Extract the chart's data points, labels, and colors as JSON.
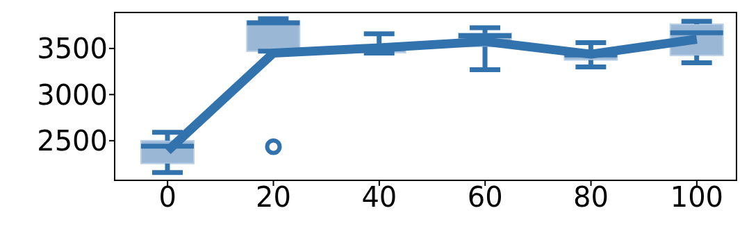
{
  "chart_data": {
    "type": "box",
    "x": [
      0,
      20,
      40,
      60,
      80,
      100
    ],
    "color": "#9ab8d6",
    "boxes": [
      {
        "low": 2155,
        "q1": 2253,
        "median": 2440,
        "q3": 2500,
        "high": 2590
      },
      {
        "low": 3470,
        "q1": 3470,
        "median": 3778,
        "q3": 3800,
        "high": 3822,
        "outliers": [
          2435
        ]
      },
      {
        "low": 3450,
        "q1": 3455,
        "median": 3500,
        "q3": 3530,
        "high": 3658
      },
      {
        "low": 3270,
        "q1": 3520,
        "median": 3638,
        "q3": 3665,
        "high": 3725
      },
      {
        "low": 3300,
        "q1": 3375,
        "median": 3430,
        "q3": 3460,
        "high": 3562
      },
      {
        "low": 3345,
        "q1": 3425,
        "median": 3670,
        "q3": 3762,
        "high": 3795
      }
    ],
    "series": [
      {
        "type": "line",
        "color": "#3273ae",
        "x": [
          0,
          20,
          40,
          60,
          80,
          100
        ],
        "values": [
          2390,
          3450,
          3507,
          3575,
          3438,
          3600
        ]
      }
    ],
    "xlim": [
      -10,
      107.5
    ],
    "ylim": [
      2070,
      3890
    ],
    "xticks": [
      0,
      20,
      40,
      60,
      80,
      100
    ],
    "yticks": [
      2500,
      3000,
      3500
    ]
  }
}
